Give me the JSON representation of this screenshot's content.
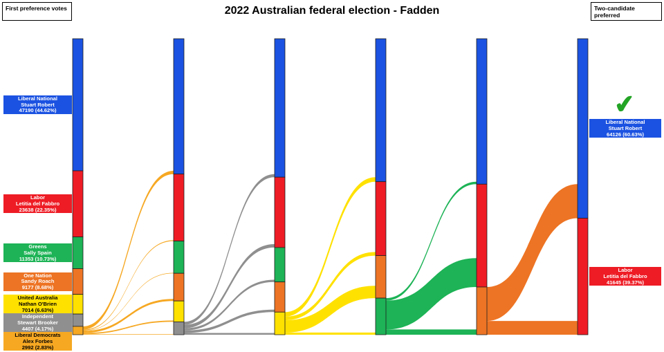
{
  "header": {
    "title": "2022 Australian federal election - Fadden",
    "left_box_label": "First preference votes",
    "right_box_label": "Two-candidate preferred"
  },
  "winner_mark": "✔",
  "colors": {
    "lnp": "#1B52E1",
    "alp": "#EE1C25",
    "grn": "#1DB356",
    "phon": "#ED7424",
    "uap": "#FFE100",
    "ind": "#8F8F8F",
    "ldp": "#F6A823",
    "checkmark": "#23A425",
    "node_stroke": "#1f1f1f"
  },
  "dark_text_parties": [
    "uap",
    "ldp"
  ],
  "chart_data": {
    "type": "sankey",
    "title": "2022 Australian federal election - Fadden",
    "total_votes": 105771,
    "flow_values_estimated": true,
    "first_preferences": [
      {
        "party": "lnp",
        "name": "Liberal National",
        "candidate": "Stuart Robert",
        "votes": 47190,
        "votes_label": "47190 (44.62%)"
      },
      {
        "party": "alp",
        "name": "Labor",
        "candidate": "Letitia del Fabbro",
        "votes": 23638,
        "votes_label": "23638 (22.35%)"
      },
      {
        "party": "grn",
        "name": "Greens",
        "candidate": "Sally Spain",
        "votes": 11353,
        "votes_label": "11353 (10.73%)"
      },
      {
        "party": "phon",
        "name": "One Nation",
        "candidate": "Sandy Roach",
        "votes": 9177,
        "votes_label": "9177 (8.68%)"
      },
      {
        "party": "uap",
        "name": "United Australia",
        "candidate": "Nathan O'Brien",
        "votes": 7014,
        "votes_label": "7014 (6.63%)"
      },
      {
        "party": "ind",
        "name": "Independent",
        "candidate": "Stewart Brooker",
        "votes": 4407,
        "votes_label": "4407 (4.17%)"
      },
      {
        "party": "ldp",
        "name": "Liberal Democrats",
        "candidate": "Alex Forbes",
        "votes": 2992,
        "votes_label": "2992 (2.83%)"
      }
    ],
    "two_candidate_preferred": [
      {
        "party": "lnp",
        "name": "Liberal National",
        "candidate": "Stuart Robert",
        "votes": 64126,
        "votes_label": "64126 (60.63%)",
        "winner": true
      },
      {
        "party": "alp",
        "name": "Labor",
        "candidate": "Letitia del Fabbro",
        "votes": 41645,
        "votes_label": "41645 (39.37%)",
        "winner": false
      }
    ],
    "stages": [
      {
        "nodes": [
          [
            "lnp",
            47190
          ],
          [
            "alp",
            23638
          ],
          [
            "grn",
            11353
          ],
          [
            "phon",
            9177
          ],
          [
            "uap",
            7014
          ],
          [
            "ind",
            4407
          ],
          [
            "ldp",
            2992
          ]
        ]
      },
      {
        "nodes": [
          [
            "lnp",
            48371
          ],
          [
            "alp",
            23938
          ],
          [
            "grn",
            11513
          ],
          [
            "phon",
            9878
          ],
          [
            "uap",
            7464
          ],
          [
            "ind",
            4607
          ]
        ]
      },
      {
        "nodes": [
          [
            "lnp",
            49471
          ],
          [
            "alp",
            25138
          ],
          [
            "grn",
            12313
          ],
          [
            "phon",
            10778
          ],
          [
            "uap",
            8071
          ]
        ]
      },
      {
        "nodes": [
          [
            "lnp",
            51071
          ],
          [
            "alp",
            26438
          ],
          [
            "phon",
            15178
          ],
          [
            "grn",
            13084
          ]
        ]
      },
      {
        "nodes": [
          [
            "lnp",
            51971
          ],
          [
            "alp",
            36738
          ],
          [
            "phon",
            17062
          ]
        ]
      },
      {
        "nodes": [
          [
            "lnp",
            64126
          ],
          [
            "alp",
            41645
          ]
        ]
      }
    ],
    "flows": [
      {
        "from": "ldp",
        "to": [
          [
            "lnp",
            1181
          ],
          [
            "alp",
            300
          ],
          [
            "grn",
            160
          ],
          [
            "phon",
            701
          ],
          [
            "uap",
            450
          ],
          [
            "ind",
            200
          ]
        ]
      },
      {
        "from": "ind",
        "to": [
          [
            "lnp",
            1100
          ],
          [
            "alp",
            1200
          ],
          [
            "grn",
            800
          ],
          [
            "phon",
            900
          ],
          [
            "uap",
            607
          ]
        ]
      },
      {
        "from": "uap",
        "to": [
          [
            "lnp",
            1600
          ],
          [
            "alp",
            1300
          ],
          [
            "phon",
            4400
          ],
          [
            "grn",
            771
          ]
        ]
      },
      {
        "from": "grn",
        "to": [
          [
            "lnp",
            900
          ],
          [
            "alp",
            10300
          ],
          [
            "phon",
            1884
          ]
        ]
      },
      {
        "from": "phon",
        "to": [
          [
            "lnp",
            12155
          ],
          [
            "alp",
            4907
          ]
        ]
      }
    ]
  }
}
